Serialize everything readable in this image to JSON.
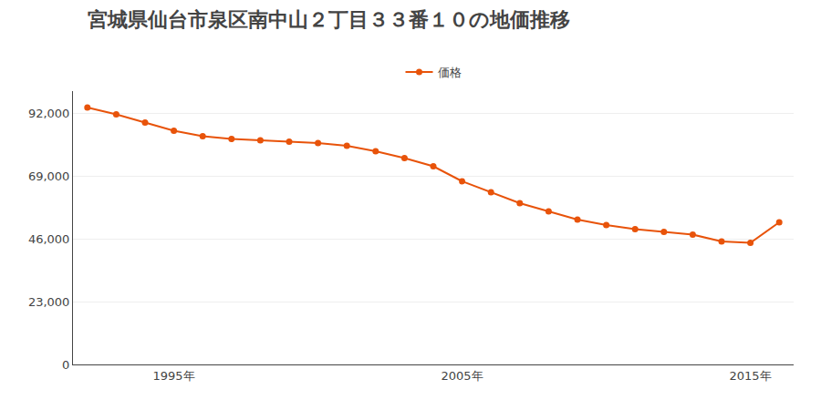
{
  "chart_data": {
    "type": "line",
    "title": "宮城県仙台市泉区南中山２丁目３３番１０の地価推移",
    "x": [
      1992,
      1993,
      1994,
      1995,
      1996,
      1997,
      1998,
      1999,
      2000,
      2001,
      2002,
      2003,
      2004,
      2005,
      2006,
      2007,
      2008,
      2009,
      2010,
      2011,
      2012,
      2013,
      2014,
      2015,
      2016
    ],
    "series": [
      {
        "name": "価格",
        "color": "#E8530A",
        "marker": "circle",
        "values": [
          94000,
          91500,
          88500,
          85500,
          83500,
          82500,
          82000,
          81500,
          81000,
          80000,
          78000,
          75500,
          72500,
          67000,
          63000,
          59000,
          56000,
          53000,
          51000,
          49500,
          48500,
          47500,
          45000,
          44500,
          52000
        ]
      }
    ],
    "xlim": [
      1991.5,
      2016.5
    ],
    "xticks": [
      {
        "value": 1995,
        "label": "1995年"
      },
      {
        "value": 2005,
        "label": "2005年"
      },
      {
        "value": 2015,
        "label": "2015年"
      }
    ],
    "ylim": [
      0,
      100000
    ],
    "yticks": [
      0,
      {
        "value": 23000,
        "label": "23,000"
      },
      {
        "value": 46000,
        "label": "46,000"
      },
      {
        "value": 69000,
        "label": "69,000"
      },
      {
        "value": 92000,
        "label": "92,000"
      }
    ],
    "grid": true,
    "legend": "top"
  }
}
